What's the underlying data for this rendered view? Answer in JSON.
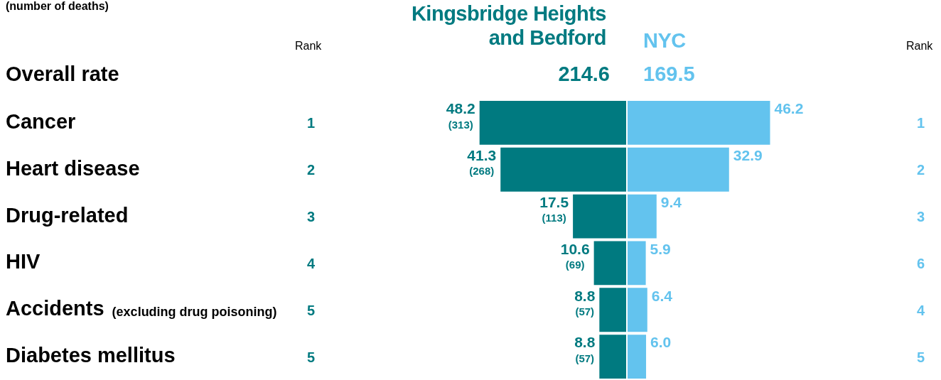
{
  "chart_data": [
    {
      "type": "bar",
      "orientation": "horizontal",
      "subtitle": "(number of deaths)",
      "categories": [
        "Cancer",
        "Heart disease",
        "Drug-related",
        "HIV",
        "Accidents (excluding drug poisoning)",
        "Diabetes mellitus"
      ],
      "series": [
        {
          "name": "Kingsbridge Heights and Bedford",
          "color": "#007a80",
          "values": [
            48.2,
            41.3,
            17.5,
            10.6,
            8.8,
            8.8
          ],
          "value_labels": [
            "48.2 (313)",
            "41.3 (268)",
            "17.5 (113)",
            "10.6 (69)",
            "8.8 (57)",
            "8.8 (57)"
          ]
        }
      ],
      "tick_labels": "y",
      "legend": false,
      "annotations": [
        "Rank",
        "Overall rate",
        "214.6",
        "1",
        "2",
        "3",
        "4",
        "5",
        "5"
      ]
    },
    {
      "type": "bar",
      "orientation": "horizontal",
      "categories": [
        null,
        null,
        null,
        null,
        null,
        null
      ],
      "series": [
        {
          "name": "NYC",
          "color": "#63c3ee",
          "values": [
            46.2,
            32.9,
            9.4,
            5.9,
            6.4,
            6.0
          ],
          "value_labels": [
            "46.2",
            "32.9",
            "9.4",
            "5.9",
            "6.4",
            "6.0"
          ]
        }
      ],
      "tick_labels": false,
      "legend": false,
      "annotations": [
        "Rank",
        "169.5",
        "1",
        "2",
        "3",
        "6",
        "4",
        "5"
      ]
    }
  ]
}
